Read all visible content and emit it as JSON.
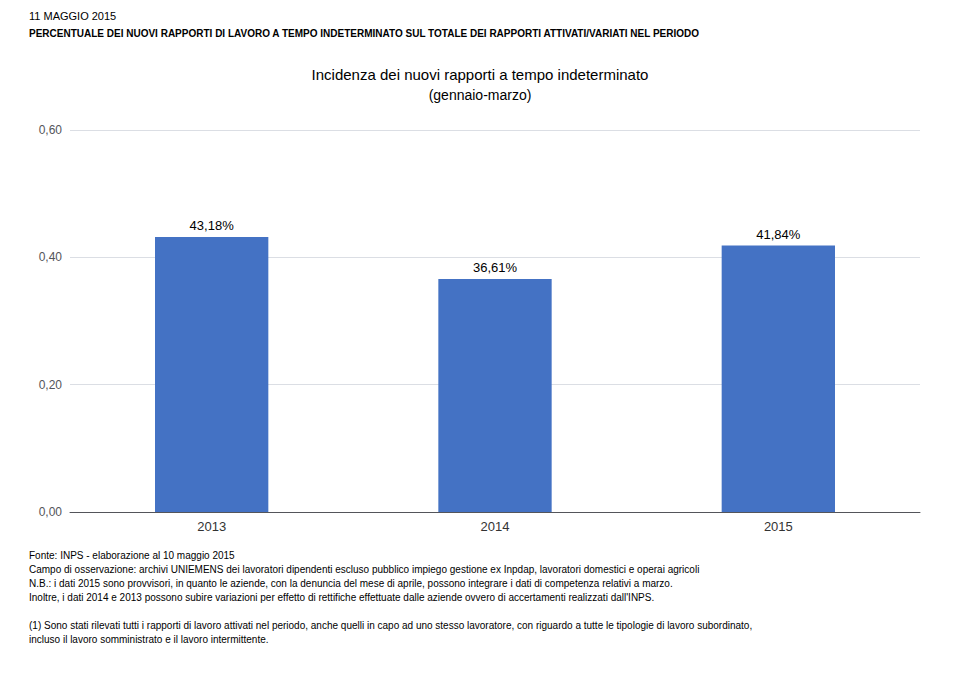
{
  "chart_data": {
    "type": "bar",
    "header": [
      "11 MAGGIO 2015",
      "PERCENTUALE DEI NUOVI RAPPORTI DI LAVORO A TEMPO INDETERMINATO SUL TOTALE DEI RAPPORTI ATTIVATI/VARIATI NEL PERIODO"
    ],
    "title": "Incidenza dei nuovi rapporti a tempo indeterminato",
    "subtitle": "(gennaio-marzo)",
    "categories": [
      "2013",
      "2014",
      "2015"
    ],
    "values": [
      0.4318,
      0.3661,
      0.4184
    ],
    "value_labels": [
      "43,18%",
      "36,61%",
      "41,84%"
    ],
    "data_labels": true,
    "color": "#4472C4",
    "ylim": [
      0,
      0.6
    ],
    "yticks": [
      {
        "value": 0.0,
        "label": "0,00"
      },
      {
        "value": 0.2,
        "label": "0,20"
      },
      {
        "value": 0.4,
        "label": "0,40"
      },
      {
        "value": 0.6,
        "label": "0,60"
      }
    ],
    "grid": true,
    "footnotes": [
      "Fonte: INPS - elaborazione al 10 maggio 2015",
      "Campo di osservazione: archivi UNIEMENS dei lavoratori dipendenti escluso pubblico impiego gestione ex Inpdap, lavoratori domestici e operai agricoli",
      "N.B.: i dati 2015 sono provvisori, in quanto le aziende, con la denuncia del mese di aprile, possono integrare i dati di competenza relativi a marzo.",
      "Inoltre, i dati 2014 e 2013 possono subire variazioni per effetto di rettifiche effettuate dalle aziende ovvero di accertamenti realizzati dall'INPS.",
      "(1) Sono stati rilevati tutti i rapporti di lavoro attivati nel periodo, anche quelli in capo ad uno stesso lavoratore, con riguardo a tutte le tipologie di lavoro subordinato,",
      "incluso il lavoro somministrato e il lavoro intermittente."
    ]
  }
}
